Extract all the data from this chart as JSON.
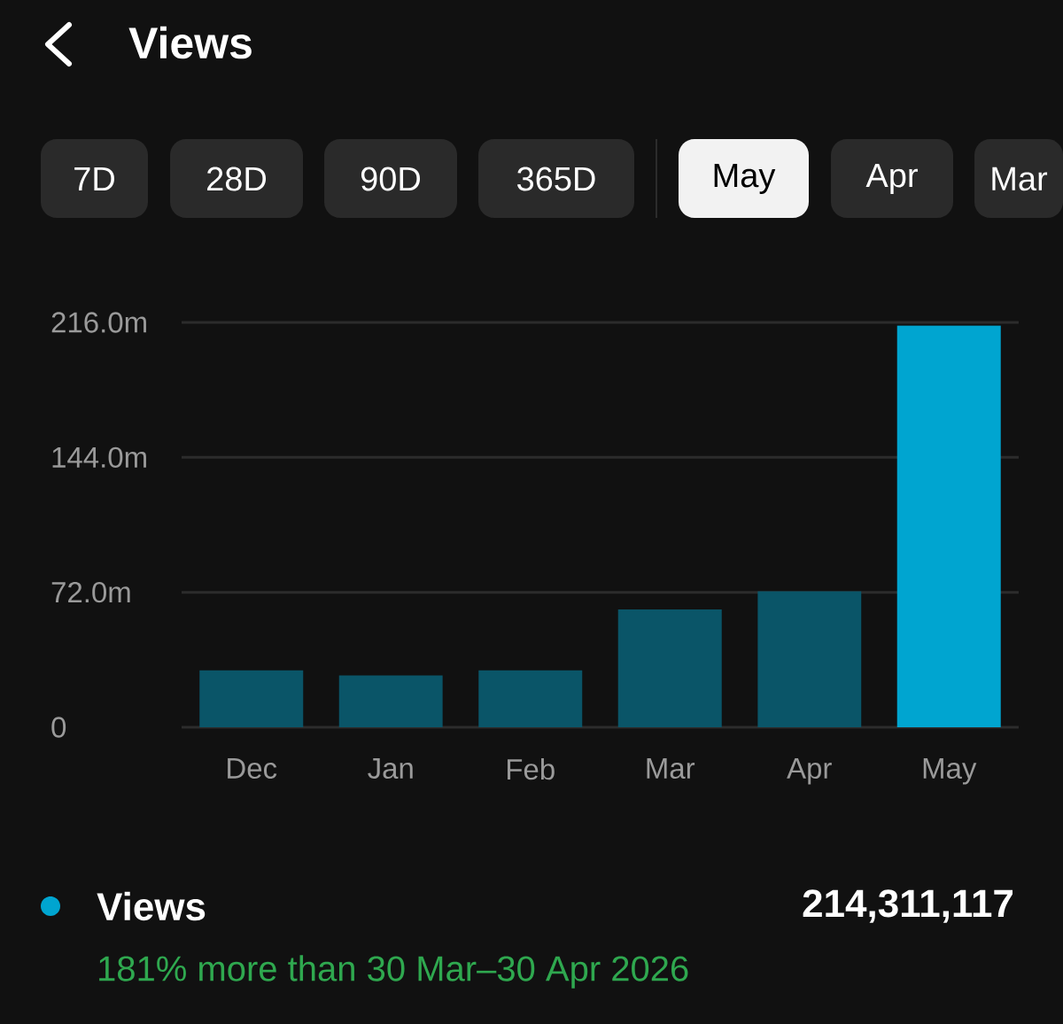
{
  "chart_data": {
    "type": "bar",
    "title": "Views",
    "categories": [
      "Dec",
      "Jan",
      "Feb",
      "Mar",
      "Apr",
      "May"
    ],
    "series": [
      {
        "name": "Views",
        "color": "#00a5d0",
        "colors": [
          "#0a5568",
          "#0a5568",
          "#0a5568",
          "#0a5568",
          "#0a5568",
          "#00a5d0"
        ],
        "values": [
          30.4,
          27.6,
          30.4,
          62.9,
          72.5,
          214.3
        ]
      }
    ],
    "ylim": [
      0,
      216
    ],
    "yticks": [
      0,
      {
        "value": 72,
        "label": "72.0m"
      },
      {
        "value": 144,
        "label": "144.0m"
      },
      {
        "value": 216,
        "label": "216.0m"
      }
    ],
    "grid": "y",
    "legend": "bottom left",
    "annotations": [
      "7D",
      "28D",
      "90D",
      "365D",
      "May",
      "Apr",
      "Mar",
      "214,311,117",
      "181% more than 30 Mar–30 Apr 2026"
    ]
  }
}
